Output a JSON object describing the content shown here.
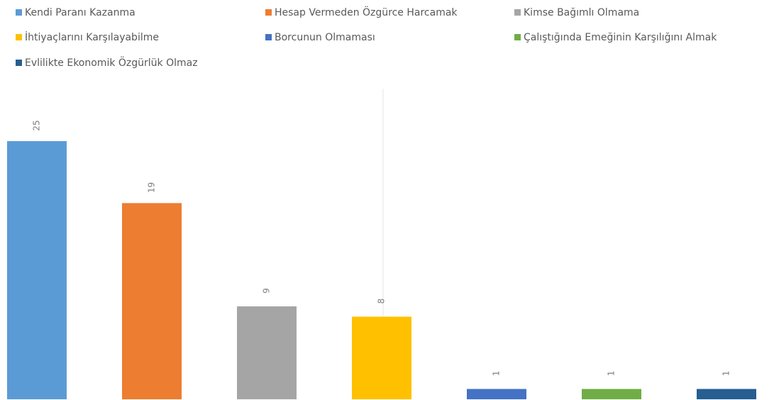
{
  "chart_data": {
    "type": "bar",
    "categories": [
      "Kendi Paranı Kazanma",
      "Hesap Vermeden Özgürce Harcamak",
      "Kimse Bağımlı Olmama",
      "İhtiyaçlarını Karşılayabilme",
      "Borcunun Olmaması",
      "Çalıştığında Emeğinin Karşılığını Almak",
      "Evlilikte Ekonomik Özgürlük Olmaz"
    ],
    "values": [
      25,
      19,
      9,
      8,
      1,
      1,
      1
    ],
    "colors": [
      "#5b9bd5",
      "#ed7d31",
      "#a5a5a5",
      "#ffc000",
      "#4472c4",
      "#70ad47",
      "#255e91"
    ],
    "legend": "top"
  }
}
